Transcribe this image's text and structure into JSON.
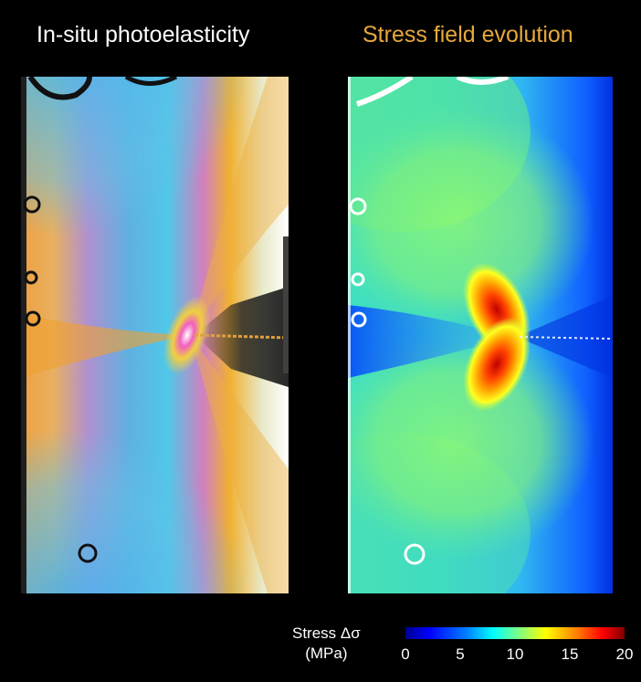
{
  "titles": {
    "left": "In-situ photoelasticity",
    "right": "Stress field evolution"
  },
  "colors": {
    "left_title": "#ffffff",
    "right_title": "#e8a83a",
    "background": "#000000"
  },
  "colorbar": {
    "label_line1": "Stress Δσ",
    "label_line2": "(MPa)",
    "colormap": "jet",
    "min": 0,
    "max": 20,
    "ticks": [
      "0",
      "5",
      "10",
      "15",
      "20"
    ]
  }
}
